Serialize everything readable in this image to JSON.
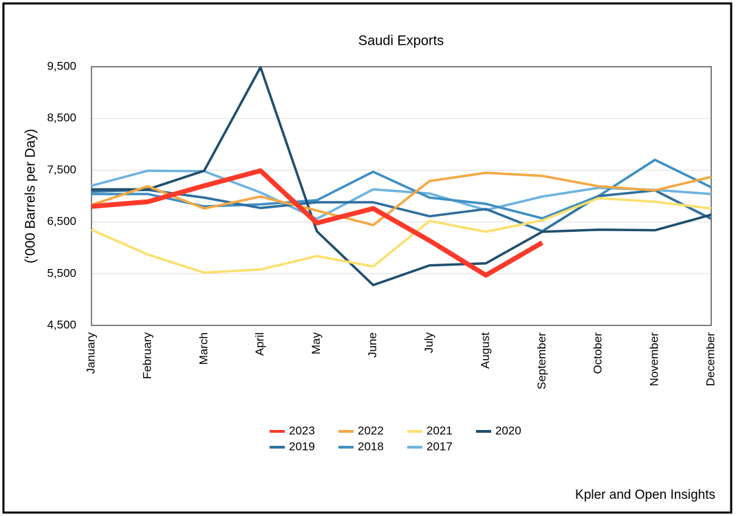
{
  "chart_data": {
    "type": "line",
    "title": "Saudi Exports",
    "y_label": "(‘000 Barrels per Day)",
    "source": "Kpler and Open Insights",
    "categories": [
      "January",
      "February",
      "March",
      "April",
      "May",
      "June",
      "July",
      "August",
      "September",
      "October",
      "November",
      "December"
    ],
    "ylim": [
      4500,
      9500
    ],
    "yticks": [
      {
        "value": 4500,
        "label": "4,500"
      },
      {
        "value": 5500,
        "label": "5,500"
      },
      {
        "value": 6500,
        "label": "6,500"
      },
      {
        "value": 7500,
        "label": "7,500"
      },
      {
        "value": 8500,
        "label": "8,500"
      },
      {
        "value": 9500,
        "label": "9,500"
      }
    ],
    "grid": true,
    "series": [
      {
        "name": "2023",
        "color": "#fb3a2a",
        "values": [
          6800,
          6890,
          7200,
          7490,
          6480,
          6760,
          6140,
          5470,
          6100,
          null,
          null,
          null
        ]
      },
      {
        "name": "2022",
        "color": "#f5a742",
        "values": [
          6830,
          7190,
          6760,
          6990,
          6720,
          6440,
          7290,
          7450,
          7390,
          7190,
          7110,
          7370
        ]
      },
      {
        "name": "2021",
        "color": "#fbe06f",
        "values": [
          6350,
          5870,
          5520,
          5580,
          5840,
          5640,
          6520,
          6310,
          6530,
          6960,
          6890,
          6760
        ]
      },
      {
        "name": "2020",
        "color": "#1f4e6e",
        "values": [
          7130,
          7130,
          7490,
          9490,
          6320,
          5280,
          5660,
          5700,
          6310,
          6350,
          6340,
          6640
        ]
      },
      {
        "name": "2019",
        "color": "#2e6f9e",
        "values": [
          7090,
          7120,
          6970,
          6770,
          6880,
          6880,
          6610,
          6750,
          6320,
          7000,
          7110,
          6560
        ]
      },
      {
        "name": "2018",
        "color": "#3f8fc4",
        "values": [
          7040,
          7040,
          6800,
          6840,
          6920,
          7470,
          6970,
          6850,
          6570,
          7000,
          7700,
          7170
        ]
      },
      {
        "name": "2017",
        "color": "#6fb3e0",
        "values": [
          7200,
          7490,
          7480,
          7070,
          6560,
          7130,
          7050,
          6730,
          6990,
          7160,
          7120,
          7040
        ]
      }
    ]
  }
}
